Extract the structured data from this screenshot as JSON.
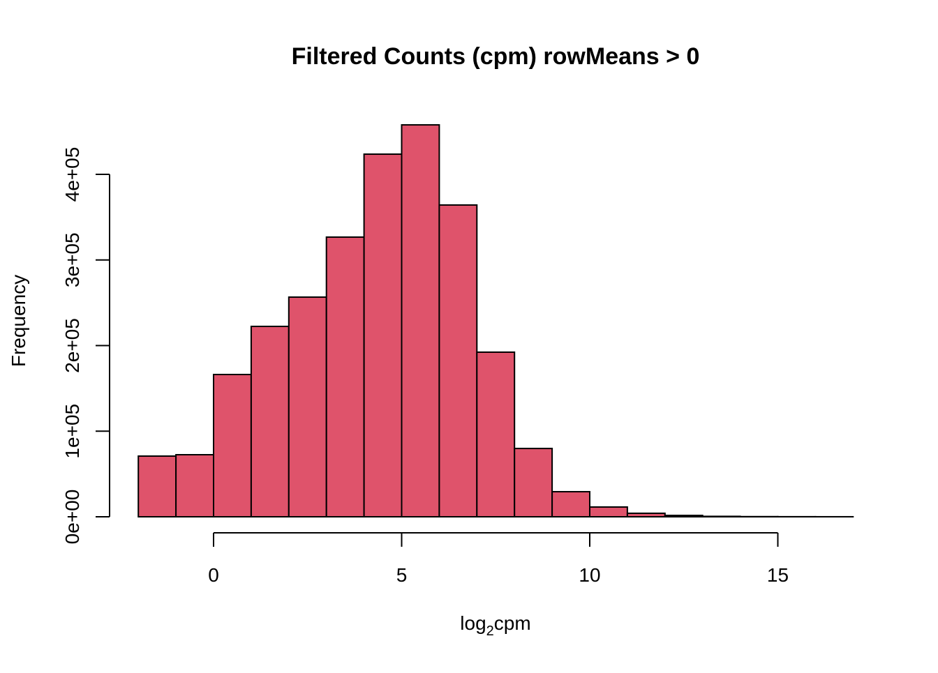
{
  "chart_data": {
    "type": "bar",
    "subtype": "histogram",
    "title": "Filtered Counts (cpm) rowMeans > 0",
    "xlabel_main": "log",
    "xlabel_sub": "2",
    "xlabel_suffix": "cpm",
    "ylabel": "Frequency",
    "bar_color": "#DF536B",
    "bin_edges": [
      -2,
      -1,
      0,
      1,
      2,
      3,
      4,
      5,
      6,
      7,
      8,
      9,
      10,
      11,
      12,
      13,
      14,
      15,
      16,
      17
    ],
    "values": [
      70900,
      72500,
      166200,
      222400,
      256600,
      326700,
      423600,
      457800,
      364200,
      192300,
      79800,
      29300,
      11400,
      4100,
      1600,
      500,
      200,
      100,
      50
    ],
    "xlim": [
      -2,
      17
    ],
    "ylim": [
      0,
      460000
    ],
    "x_ticks": [
      0,
      5,
      10,
      15
    ],
    "x_tick_labels": [
      "0",
      "5",
      "10",
      "15"
    ],
    "y_ticks": [
      0,
      100000,
      200000,
      300000,
      400000
    ],
    "y_tick_labels": [
      "0e+00",
      "1e+05",
      "2e+05",
      "3e+05",
      "4e+05"
    ],
    "grid": false
  }
}
